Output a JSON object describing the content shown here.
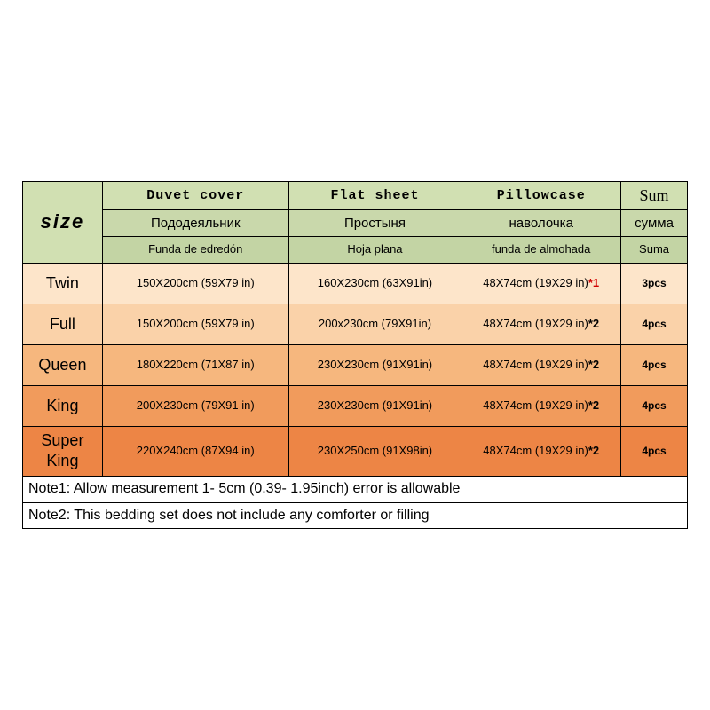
{
  "colors": {
    "header_green_1": "#d1e0b2",
    "header_green_2": "#c9d8ab",
    "header_green_3": "#c3d4a4",
    "row_bg": [
      "#fde5ca",
      "#fad2a9",
      "#f6b77e",
      "#f19b5c",
      "#ed8545"
    ],
    "border": "#000000",
    "suffix_red": "#d00000"
  },
  "col_widths_pct": [
    12,
    28,
    26,
    24,
    10
  ],
  "size_label": "size",
  "headers": {
    "duvet": {
      "en": "Duvet cover",
      "ru": "Пододеяльник",
      "es": "Funda de edredón"
    },
    "sheet": {
      "en": "Flat sheet",
      "ru": "Простыня",
      "es": "Hoja plana"
    },
    "pillow": {
      "en": "Pillowcase",
      "ru": "наволочка",
      "es": "funda de almohada"
    },
    "sum": {
      "en": "Sum",
      "ru": "сумма",
      "es": "Suma"
    }
  },
  "rows": [
    {
      "size": "Twin",
      "duvet": "150X200cm (59X79 in)",
      "sheet": "160X230cm (63X91in)",
      "pillow_base": "48X74cm (19X29 in)",
      "pillow_suffix": "*1",
      "suffix_red": true,
      "sum": "3pcs"
    },
    {
      "size": "Full",
      "duvet": "150X200cm (59X79 in)",
      "sheet": "200x230cm (79X91in)",
      "pillow_base": "48X74cm (19X29 in)",
      "pillow_suffix": "*2",
      "suffix_red": false,
      "sum": "4pcs"
    },
    {
      "size": "Queen",
      "duvet": "180X220cm (71X87 in)",
      "sheet": "230X230cm (91X91in)",
      "pillow_base": "48X74cm (19X29 in)",
      "pillow_suffix": "*2",
      "suffix_red": false,
      "sum": "4pcs"
    },
    {
      "size": "King",
      "duvet": "200X230cm (79X91 in)",
      "sheet": "230X230cm (91X91in)",
      "pillow_base": "48X74cm (19X29 in)",
      "pillow_suffix": "*2",
      "suffix_red": false,
      "sum": "4pcs"
    },
    {
      "size": "Super King",
      "duvet": "220X240cm (87X94 in)",
      "sheet": "230X250cm (91X98in)",
      "pillow_base": "48X74cm (19X29 in)",
      "pillow_suffix": "*2",
      "suffix_red": false,
      "sum": "4pcs"
    }
  ],
  "notes": [
    "Note1: Allow measurement 1- 5cm (0.39- 1.95inch) error is allowable",
    "Note2: This bedding set does not include any comforter or filling"
  ]
}
